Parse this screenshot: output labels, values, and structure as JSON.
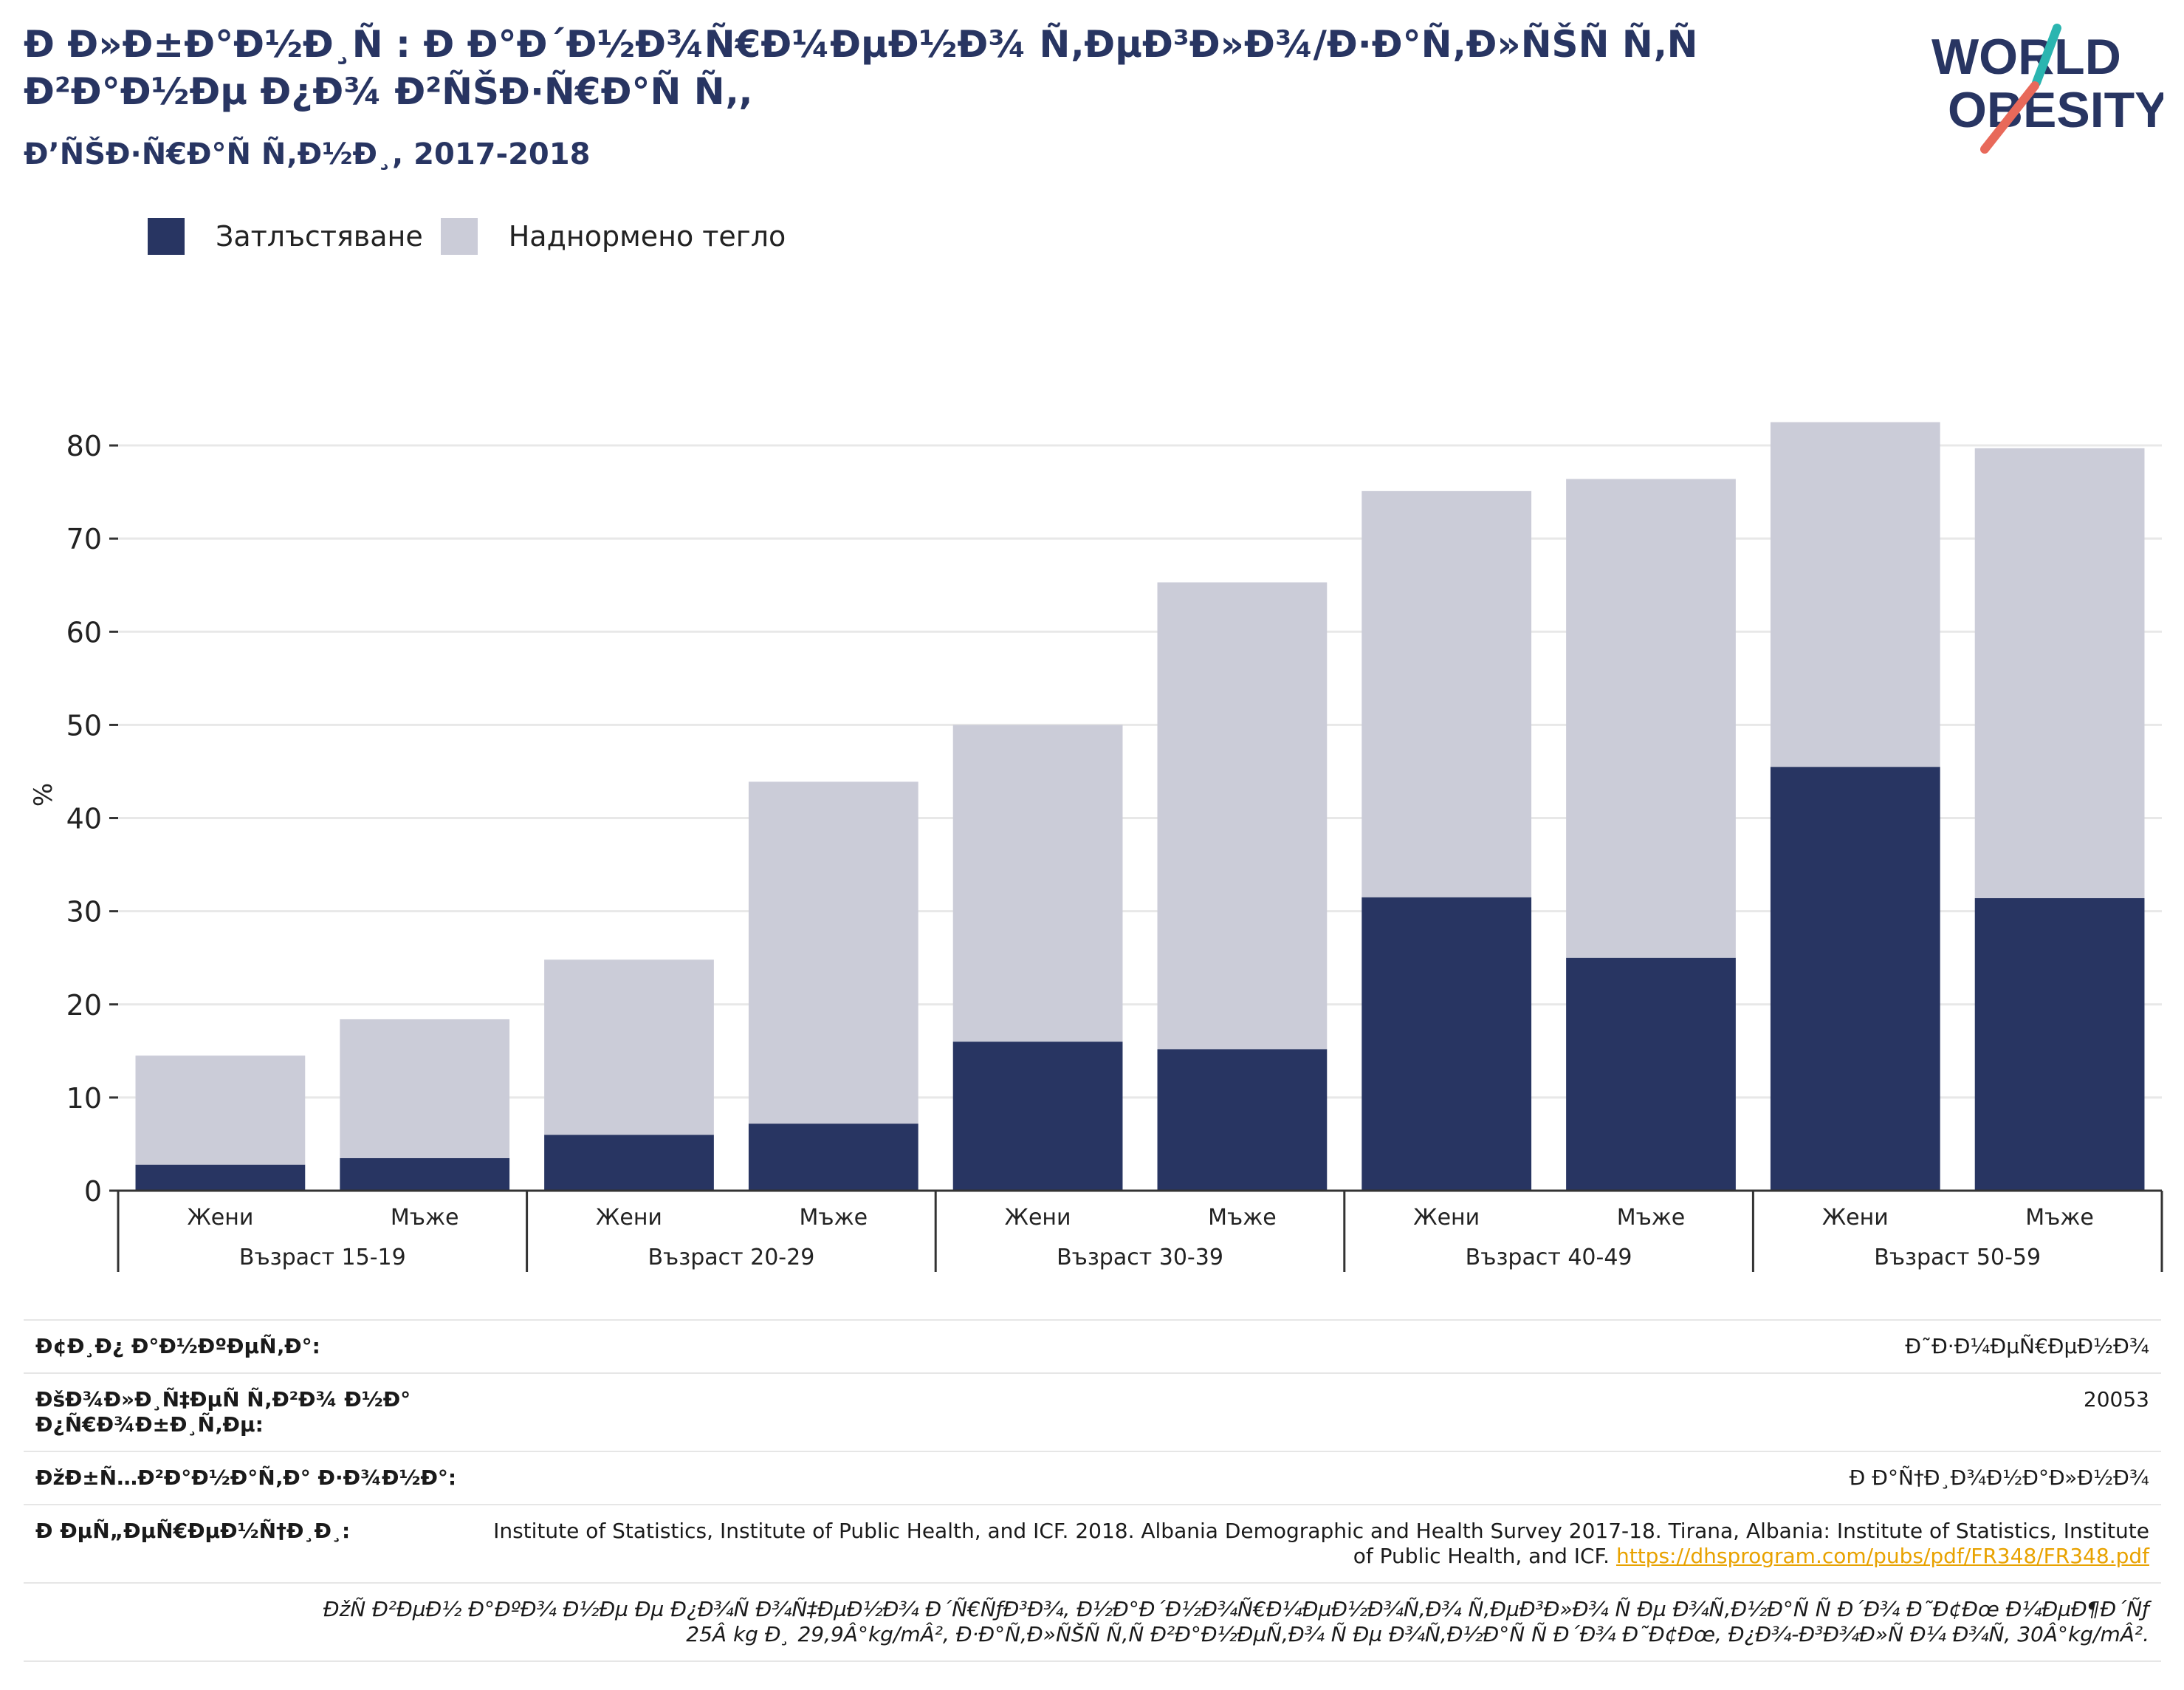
{
  "header": {
    "title": "Ð Ð»Ð±Ð°Ð½Ð¸Ñ : Ð Ð°Ð´Ð½Ð¾Ñ€Ð¼ÐµÐ½Ð¾ Ñ‚ÐµÐ³Ð»Ð¾/Ð·Ð°Ñ‚Ð»ÑŠÑ Ñ‚Ñ Ð²Ð°Ð½Ðµ Ð¿Ð¾ Ð²ÑŠÐ·Ñ€Ð°Ñ Ñ‚,",
    "subtitle": "Ð’ÑŠÐ·Ñ€Ð°Ñ Ñ‚Ð½Ð¸, 2017-2018"
  },
  "logo": {
    "line1": "WORLD",
    "line2": "OBESITY"
  },
  "legend": [
    {
      "label": "Затлъстяване",
      "color": "#283562"
    },
    {
      "label": "Наднормено тегло",
      "color": "#cbccd8"
    }
  ],
  "chart_data": {
    "type": "bar",
    "stacked": true,
    "ylabel": "%",
    "ylim": [
      0,
      85
    ],
    "yticks": [
      0,
      10,
      20,
      30,
      40,
      50,
      60,
      70,
      80
    ],
    "grid": true,
    "legend_position": "top-left",
    "groups": [
      "Възраст 15-19",
      "Възраст 20-29",
      "Възраст 30-39",
      "Възраст 40-49",
      "Възраст 50-59"
    ],
    "categories": [
      "Жени",
      "Мъже",
      "Жени",
      "Мъже",
      "Жени",
      "Мъже",
      "Жени",
      "Мъже",
      "Жени",
      "Мъже"
    ],
    "series": [
      {
        "name": "Затлъстяване",
        "color": "#283562",
        "values": [
          2.8,
          3.5,
          6.0,
          7.2,
          16.0,
          15.2,
          31.5,
          25.0,
          45.5,
          31.4
        ]
      },
      {
        "name": "Наднормено тегло",
        "color": "#cbccd8",
        "values": [
          11.7,
          14.9,
          18.8,
          36.7,
          34.0,
          50.1,
          43.6,
          51.4,
          37.0,
          48.3
        ]
      }
    ]
  },
  "meta": {
    "rows": [
      {
        "key": "Ð¢Ð¸Ð¿ Ð°Ð½ÐºÐµÑ‚Ð°:",
        "value": "Ð˜Ð·Ð¼ÐµÑ€ÐµÐ½Ð¾"
      },
      {
        "key": "ÐšÐ¾Ð»Ð¸Ñ‡ÐµÑ Ñ‚Ð²Ð¾ Ð½Ð° Ð¿Ñ€Ð¾Ð±Ð¸Ñ‚Ðµ:",
        "value": "20053"
      },
      {
        "key": "ÐžÐ±Ñ…Ð²Ð°Ð½Ð°Ñ‚Ð° Ð·Ð¾Ð½Ð°:",
        "value": "Ð Ð°Ñ†Ð¸Ð¾Ð½Ð°Ð»Ð½Ð¾"
      }
    ],
    "reference_key": "Ð ÐµÑ„ÐµÑ€ÐµÐ½Ñ†Ð¸Ð¸:",
    "reference_text": "Institute of Statistics, Institute of Public Health, and ICF. 2018. Albania Demographic and Health Survey 2017-18. Tirana, Albania: Institute of Statistics, Institute of Public Health, and ICF.",
    "reference_link": "https://dhsprogram.com/pubs/pdf/FR348/FR348.pdf",
    "note_line1": "ÐžÑ Ð²ÐµÐ½ Ð°ÐºÐ¾ Ð½Ðµ Ðµ Ð¿Ð¾Ñ Ð¾Ñ‡ÐµÐ½Ð¾ Ð´Ñ€ÑƒÐ³Ð¾, Ð½Ð°Ð´Ð½Ð¾Ñ€Ð¼ÐµÐ½Ð¾Ñ‚Ð¾ Ñ‚ÐµÐ³Ð»Ð¾ Ñ Ðµ Ð¾Ñ‚Ð½Ð°Ñ Ñ  Ð´Ð¾ Ð˜Ð¢Ðœ Ð¼ÐµÐ¶Ð´Ñƒ",
    "note_line2": "25Â kg Ð¸ 29,9Â°kg/mÂ², Ð·Ð°Ñ‚Ð»ÑŠÑ Ñ‚Ñ Ð²Ð°Ð½ÐµÑ‚Ð¾ Ñ Ðµ Ð¾Ñ‚Ð½Ð°Ñ Ñ  Ð´Ð¾ Ð˜Ð¢Ðœ, Ð¿Ð¾-Ð³Ð¾Ð»Ñ Ð¼ Ð¾Ñ‚ 30Â°kg/mÂ²."
  }
}
